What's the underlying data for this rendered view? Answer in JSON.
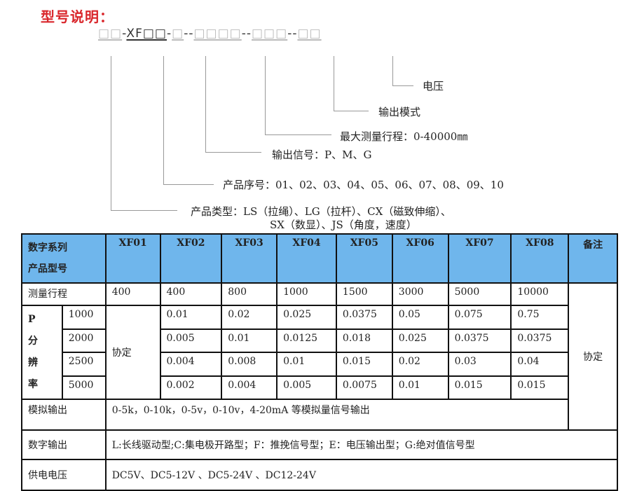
{
  "title": "型号说明：",
  "code": {
    "p1": "□□",
    "d1": "-",
    "p2": "XF□□",
    "d2": "-",
    "p3": "□",
    "d3": "--",
    "p4": "□□□□",
    "d4": "--",
    "p5": "□□□",
    "d5": "--",
    "p6": "□□"
  },
  "labels": {
    "voltage": "电压",
    "output_mode": "输出模式",
    "max_range": "最大测量行程：0-40000㎜",
    "output_signal": "输出信号：P、M、G",
    "serial": "产品序号：01、02、03、04、05、06、07、08、09、10",
    "type_line1": "产品类型：LS（拉绳）、LG（拉杆）、CX（磁致伸缩）、",
    "type_line2": "SX（数显）、JS（角度，速度）"
  },
  "table": {
    "header_line1": "数字系列",
    "header_line2": "产品型号",
    "models": [
      "XF01",
      "XF02",
      "XF03",
      "XF04",
      "XF05",
      "XF06",
      "XF07",
      "XF08"
    ],
    "remark": "备注",
    "range_label": "测量行程",
    "range": [
      "400",
      "400",
      "800",
      "1000",
      "1500",
      "3000",
      "5000",
      "10000"
    ],
    "res_label": [
      "P",
      "分",
      "辨",
      "率"
    ],
    "res_rows": [
      {
        "p": "1000",
        "vals": [
          "0.01",
          "0.02",
          "0.025",
          "0.0375",
          "0.05",
          "0.075",
          "0.75"
        ]
      },
      {
        "p": "2000",
        "vals": [
          "0.005",
          "0.01",
          "0.0125",
          "0.018",
          "0.025",
          "0.0375",
          "0.0375"
        ]
      },
      {
        "p": "2500",
        "vals": [
          "0.004",
          "0.008",
          "0.01",
          "0.015",
          "0.02",
          "0.03",
          "0.04"
        ]
      },
      {
        "p": "5000",
        "vals": [
          "0.002",
          "0.004",
          "0.005",
          "0.0075",
          "0.01",
          "0.015",
          "0.015"
        ]
      }
    ],
    "xf01_res": "协定",
    "remark_value": "协定",
    "analog_label": "模拟输出",
    "analog": "0-5k，0-10k，0-5v，0-10v，4-20mA 等模拟量信号输出",
    "digital_label": "数字输出",
    "digital": "L:长线驱动型;C:集电极开路型；F：推挽信号型；E：电压输出型；G:绝对值信号型",
    "power_label": "供电电压",
    "power": "DC5V、DC5-12V 、DC5-24V 、DC12-24V"
  },
  "colors": {
    "title": "#d9262b",
    "header_bg": "#6fb6ec"
  }
}
